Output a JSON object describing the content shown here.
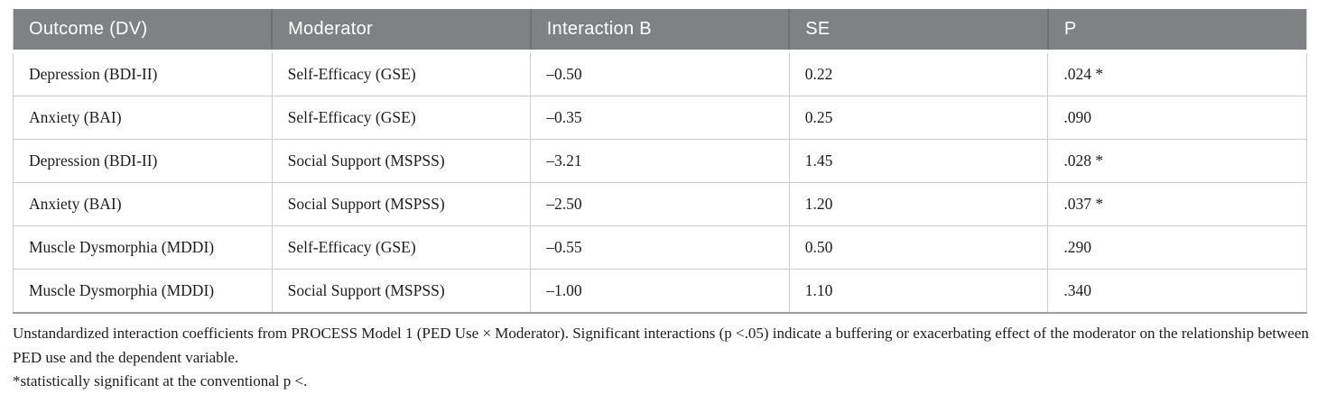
{
  "table": {
    "columns": [
      "Outcome (DV)",
      "Moderator",
      "Interaction B",
      "SE",
      "P"
    ],
    "rows": [
      [
        "Depression (BDI-II)",
        "Self-Efficacy (GSE)",
        "–0.50",
        "0.22",
        ".024 *"
      ],
      [
        "Anxiety (BAI)",
        "Self-Efficacy (GSE)",
        "–0.35",
        "0.25",
        ".090"
      ],
      [
        "Depression (BDI-II)",
        "Social Support (MSPSS)",
        "–3.21",
        "1.45",
        ".028 *"
      ],
      [
        "Anxiety (BAI)",
        "Social Support (MSPSS)",
        "–2.50",
        "1.20",
        ".037 *"
      ],
      [
        "Muscle Dysmorphia (MDDI)",
        "Self-Efficacy (GSE)",
        "–0.55",
        "0.50",
        ".290"
      ],
      [
        "Muscle Dysmorphia (MDDI)",
        "Social Support (MSPSS)",
        "–1.00",
        "1.10",
        ".340"
      ]
    ]
  },
  "notes": {
    "general": "Unstandardized interaction coefficients from PROCESS Model 1 (PED Use × Moderator). Significant interactions (p <.05) indicate a buffering or exacerbating effect of the moderator on the relationship between PED use and the dependent variable.",
    "significance": "*statistically significant at the conventional p <."
  },
  "colors": {
    "header_bg": "#7f8184",
    "header_text": "#ffffff",
    "header_divider": "#6e7072",
    "body_text": "#1d1d1b",
    "grid_line": "#cccccc",
    "outer_side_border": "#cfcfcf",
    "outer_bottom_border": "#9e9e9e",
    "background": "#ffffff"
  }
}
